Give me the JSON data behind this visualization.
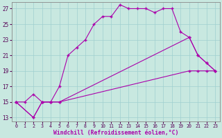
{
  "xlabel": "Windchill (Refroidissement éolien,°C)",
  "xlim_min": -0.5,
  "xlim_max": 23.5,
  "ylim_min": 12.5,
  "ylim_max": 27.8,
  "xticks": [
    0,
    1,
    2,
    3,
    4,
    5,
    6,
    7,
    8,
    9,
    10,
    11,
    12,
    13,
    14,
    15,
    16,
    17,
    18,
    19,
    20,
    21,
    22,
    23
  ],
  "yticks": [
    13,
    15,
    17,
    19,
    21,
    23,
    25,
    27
  ],
  "bg_color": "#c8e8e0",
  "grid_color": "#9fcfcf",
  "line_color": "#aa00aa",
  "line1_x": [
    0,
    1,
    2,
    3,
    4,
    5,
    6,
    7,
    8,
    9,
    10,
    11,
    12,
    13,
    14,
    15,
    16,
    17,
    18,
    19,
    20,
    21,
    22,
    23
  ],
  "line1_y": [
    15,
    15,
    16,
    15,
    15,
    17,
    21,
    22,
    23,
    25,
    26,
    26,
    27.5,
    27,
    27,
    27,
    26.5,
    27,
    27,
    24,
    23.3,
    21,
    20,
    19
  ],
  "line2_x": [
    0,
    2,
    3,
    4,
    5,
    20,
    21,
    22,
    23
  ],
  "line2_y": [
    15,
    13,
    15,
    15,
    15,
    23.3,
    21,
    20,
    19
  ],
  "line3_x": [
    0,
    2,
    3,
    4,
    5,
    20,
    21,
    22,
    23
  ],
  "line3_y": [
    15,
    13,
    15,
    15,
    15,
    19,
    19,
    19,
    19
  ]
}
